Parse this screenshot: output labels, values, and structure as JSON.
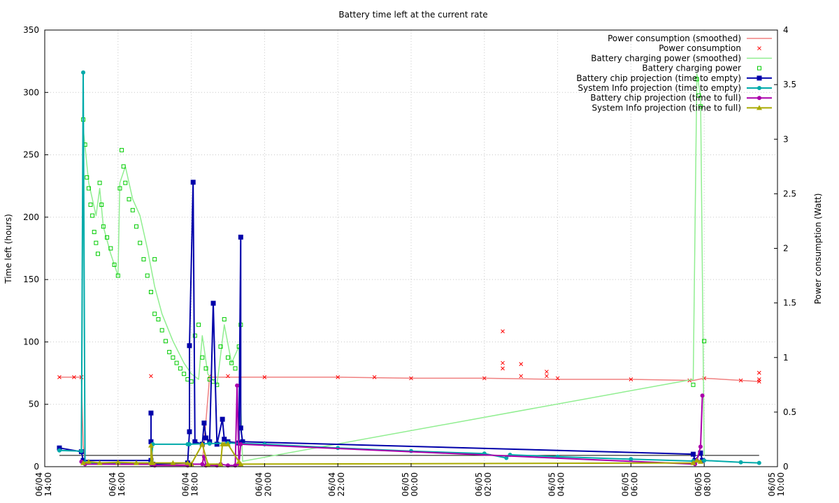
{
  "chart_data": {
    "type": "line",
    "title": "Battery time left at the current rate",
    "ylabel": "Time left (hours)",
    "y2label": "Power consumption (Watt)",
    "ylim": [
      0,
      350
    ],
    "y2lim": [
      0,
      4
    ],
    "xlim": [
      "06/04 14:00",
      "06/05 10:00"
    ],
    "grid": true,
    "legend_position": "top-right",
    "yticks": [
      "0",
      "50",
      "100",
      "150",
      "200",
      "250",
      "300",
      "350"
    ],
    "y2ticks": [
      "0",
      "0.5",
      "1",
      "1.5",
      "2",
      "2.5",
      "3",
      "3.5",
      "4"
    ],
    "xticks": [
      {
        "line1": "06/04",
        "line2": "14:00",
        "h": 0
      },
      {
        "line1": "06/04",
        "line2": "16:00",
        "h": 2
      },
      {
        "line1": "06/04",
        "line2": "18:00",
        "h": 4
      },
      {
        "line1": "06/04",
        "line2": "20:00",
        "h": 6
      },
      {
        "line1": "06/04",
        "line2": "22:00",
        "h": 8
      },
      {
        "line1": "06/05",
        "line2": "00:00",
        "h": 10
      },
      {
        "line1": "06/05",
        "line2": "02:00",
        "h": 12
      },
      {
        "line1": "06/05",
        "line2": "04:00",
        "h": 14
      },
      {
        "line1": "06/05",
        "line2": "06:00",
        "h": 16
      },
      {
        "line1": "06/05",
        "line2": "08:00",
        "h": 18
      },
      {
        "line1": "06/05",
        "line2": "10:00",
        "h": 20
      }
    ],
    "series": [
      {
        "name": "Power consumption (smoothed)",
        "axis": "y2",
        "style": "line",
        "color": "#f08080",
        "points": [
          [
            0.4,
            0.82
          ],
          [
            1.0,
            0.82
          ],
          [
            1.05,
            0.2
          ],
          [
            1.1,
            0.04
          ],
          [
            2.0,
            0.02
          ],
          [
            3.0,
            0.02
          ],
          [
            4.0,
            0.02
          ],
          [
            4.3,
            0.02
          ],
          [
            4.5,
            0.82
          ],
          [
            6.0,
            0.82
          ],
          [
            8.0,
            0.82
          ],
          [
            10.0,
            0.81
          ],
          [
            12.0,
            0.81
          ],
          [
            14.0,
            0.8
          ],
          [
            16.0,
            0.8
          ],
          [
            17.7,
            0.79
          ],
          [
            18.0,
            0.81
          ],
          [
            19.5,
            0.78
          ]
        ]
      },
      {
        "name": "Power consumption",
        "axis": "y2",
        "style": "points",
        "marker": "x",
        "color": "#ff0000",
        "points": [
          [
            0.4,
            0.82
          ],
          [
            0.8,
            0.82
          ],
          [
            1.0,
            0.82
          ],
          [
            2.9,
            0.83
          ],
          [
            4.5,
            0.83
          ],
          [
            5.0,
            0.83
          ],
          [
            6.0,
            0.82
          ],
          [
            8.0,
            0.82
          ],
          [
            9.0,
            0.82
          ],
          [
            10.0,
            0.81
          ],
          [
            12.0,
            0.81
          ],
          [
            12.5,
            1.24
          ],
          [
            12.5,
            0.95
          ],
          [
            12.5,
            0.9
          ],
          [
            13.0,
            0.94
          ],
          [
            13.0,
            0.83
          ],
          [
            13.7,
            0.87
          ],
          [
            13.7,
            0.83
          ],
          [
            14.0,
            0.81
          ],
          [
            16.0,
            0.8
          ],
          [
            17.6,
            0.79
          ],
          [
            18.0,
            0.81
          ],
          [
            19.0,
            0.79
          ],
          [
            19.5,
            0.78
          ],
          [
            19.5,
            0.86
          ],
          [
            19.5,
            0.8
          ]
        ]
      },
      {
        "name": "Battery charging power (smoothed)",
        "axis": "y2",
        "style": "line",
        "color": "#90ee90",
        "points": [
          [
            1.0,
            0.1
          ],
          [
            1.05,
            3.1
          ],
          [
            1.2,
            2.6
          ],
          [
            1.4,
            2.3
          ],
          [
            1.5,
            2.55
          ],
          [
            1.6,
            2.2
          ],
          [
            1.8,
            1.95
          ],
          [
            2.0,
            1.75
          ],
          [
            2.05,
            2.6
          ],
          [
            2.2,
            2.75
          ],
          [
            2.4,
            2.45
          ],
          [
            2.6,
            2.3
          ],
          [
            2.8,
            2.0
          ],
          [
            3.0,
            1.65
          ],
          [
            3.2,
            1.4
          ],
          [
            3.5,
            1.15
          ],
          [
            3.8,
            0.95
          ],
          [
            4.0,
            0.85
          ],
          [
            4.2,
            0.8
          ],
          [
            4.3,
            1.2
          ],
          [
            4.45,
            0.85
          ],
          [
            4.7,
            0.75
          ],
          [
            4.9,
            1.3
          ],
          [
            5.1,
            0.95
          ],
          [
            5.3,
            1.1
          ],
          [
            5.4,
            0.05
          ],
          [
            17.7,
            0.8
          ],
          [
            17.8,
            3.6
          ],
          [
            17.9,
            3.4
          ],
          [
            18.0,
            0.1
          ]
        ]
      },
      {
        "name": "Battery charging power",
        "axis": "y2",
        "style": "points",
        "marker": "square",
        "color": "#00cc00",
        "points": [
          [
            1.05,
            3.18
          ],
          [
            1.1,
            2.95
          ],
          [
            1.15,
            2.65
          ],
          [
            1.2,
            2.55
          ],
          [
            1.25,
            2.4
          ],
          [
            1.3,
            2.3
          ],
          [
            1.35,
            2.15
          ],
          [
            1.4,
            2.05
          ],
          [
            1.45,
            1.95
          ],
          [
            1.5,
            2.6
          ],
          [
            1.55,
            2.4
          ],
          [
            1.6,
            2.2
          ],
          [
            1.7,
            2.1
          ],
          [
            1.8,
            2.0
          ],
          [
            1.9,
            1.85
          ],
          [
            2.0,
            1.75
          ],
          [
            2.05,
            2.55
          ],
          [
            2.1,
            2.9
          ],
          [
            2.15,
            2.75
          ],
          [
            2.2,
            2.6
          ],
          [
            2.3,
            2.45
          ],
          [
            2.4,
            2.35
          ],
          [
            2.5,
            2.2
          ],
          [
            2.6,
            2.05
          ],
          [
            2.7,
            1.9
          ],
          [
            2.8,
            1.75
          ],
          [
            2.9,
            1.6
          ],
          [
            3.0,
            1.9
          ],
          [
            3.0,
            1.4
          ],
          [
            3.1,
            1.35
          ],
          [
            3.2,
            1.25
          ],
          [
            3.3,
            1.15
          ],
          [
            3.4,
            1.05
          ],
          [
            3.5,
            1.0
          ],
          [
            3.6,
            0.95
          ],
          [
            3.7,
            0.9
          ],
          [
            3.8,
            0.85
          ],
          [
            3.9,
            0.8
          ],
          [
            4.0,
            0.78
          ],
          [
            4.1,
            1.2
          ],
          [
            4.2,
            1.3
          ],
          [
            4.3,
            1.0
          ],
          [
            4.4,
            0.9
          ],
          [
            4.5,
            0.8
          ],
          [
            4.6,
            0.78
          ],
          [
            4.7,
            0.75
          ],
          [
            4.8,
            1.1
          ],
          [
            4.9,
            1.35
          ],
          [
            5.0,
            1.0
          ],
          [
            5.1,
            0.95
          ],
          [
            5.2,
            0.9
          ],
          [
            5.3,
            1.1
          ],
          [
            5.35,
            1.3
          ],
          [
            17.7,
            0.75
          ],
          [
            17.8,
            3.55
          ],
          [
            17.85,
            3.4
          ],
          [
            17.9,
            3.3
          ],
          [
            18.0,
            1.15
          ]
        ]
      },
      {
        "name": "Battery chip projection (time to empty)",
        "axis": "y",
        "style": "linespoints",
        "marker": "square",
        "color": "#0000aa",
        "points": [
          [
            0.4,
            15
          ],
          [
            1.0,
            12
          ],
          [
            1.05,
            5
          ],
          [
            2.9,
            5
          ],
          [
            2.9,
            43
          ],
          [
            2.9,
            20
          ],
          [
            2.95,
            2
          ],
          [
            3.9,
            3
          ],
          [
            3.95,
            28
          ],
          [
            3.95,
            97
          ],
          [
            4.05,
            228
          ],
          [
            4.1,
            20
          ],
          [
            4.3,
            18
          ],
          [
            4.35,
            35
          ],
          [
            4.4,
            23
          ],
          [
            4.5,
            20
          ],
          [
            4.6,
            131
          ],
          [
            4.7,
            18
          ],
          [
            4.85,
            38
          ],
          [
            4.9,
            22
          ],
          [
            5.0,
            20
          ],
          [
            5.3,
            19
          ],
          [
            5.35,
            184
          ],
          [
            5.35,
            31
          ],
          [
            5.4,
            20
          ],
          [
            17.7,
            10
          ],
          [
            17.75,
            5
          ],
          [
            17.9,
            11
          ],
          [
            17.95,
            5
          ]
        ]
      },
      {
        "name": "System Info projection (time to empty)",
        "axis": "y",
        "style": "linespoints",
        "marker": "circle",
        "color": "#00aaaa",
        "points": [
          [
            0.4,
            13
          ],
          [
            1.0,
            12.5
          ],
          [
            1.05,
            316
          ],
          [
            1.1,
            3
          ],
          [
            2.9,
            3
          ],
          [
            2.95,
            18
          ],
          [
            3.9,
            18
          ],
          [
            3.95,
            18
          ],
          [
            4.5,
            18.5
          ],
          [
            5.0,
            19
          ],
          [
            6.0,
            18
          ],
          [
            8.0,
            15
          ],
          [
            10.0,
            12.5
          ],
          [
            12.0,
            10.5
          ],
          [
            12.6,
            7
          ],
          [
            12.7,
            9.5
          ],
          [
            14.0,
            8
          ],
          [
            16.0,
            6
          ],
          [
            17.7,
            4.5
          ],
          [
            18.0,
            5
          ],
          [
            19.0,
            3.5
          ],
          [
            19.5,
            3
          ]
        ]
      },
      {
        "name": "Battery chip projection (time to full)",
        "axis": "y",
        "style": "linespoints",
        "marker": "circle",
        "color": "#aa00aa",
        "points": [
          [
            1.0,
            4
          ],
          [
            1.1,
            2
          ],
          [
            2.9,
            2
          ],
          [
            3.0,
            1
          ],
          [
            3.9,
            1
          ],
          [
            4.0,
            2
          ],
          [
            4.3,
            2
          ],
          [
            4.35,
            8
          ],
          [
            4.4,
            1
          ],
          [
            4.7,
            1
          ],
          [
            4.8,
            2
          ],
          [
            5.0,
            1
          ],
          [
            5.2,
            1
          ],
          [
            5.25,
            65
          ],
          [
            5.3,
            2
          ],
          [
            5.35,
            18
          ],
          [
            17.75,
            2
          ],
          [
            17.8,
            5
          ],
          [
            17.9,
            16
          ],
          [
            17.95,
            57
          ]
        ]
      },
      {
        "name": "System Info projection (time to full)",
        "axis": "y",
        "style": "linespoints",
        "marker": "triangle",
        "color": "#aaaa00",
        "points": [
          [
            1.05,
            3
          ],
          [
            1.2,
            4
          ],
          [
            1.5,
            3
          ],
          [
            2.0,
            3.5
          ],
          [
            2.5,
            3
          ],
          [
            2.9,
            3
          ],
          [
            2.9,
            17
          ],
          [
            2.95,
            3
          ],
          [
            3.5,
            3
          ],
          [
            3.9,
            3
          ],
          [
            4.0,
            2
          ],
          [
            4.3,
            18
          ],
          [
            4.45,
            2
          ],
          [
            4.8,
            2
          ],
          [
            4.85,
            18
          ],
          [
            4.9,
            18
          ],
          [
            5.0,
            18
          ],
          [
            5.3,
            4
          ],
          [
            5.35,
            2
          ],
          [
            17.7,
            3
          ],
          [
            17.8,
            5
          ],
          [
            17.9,
            4
          ]
        ]
      }
    ]
  }
}
